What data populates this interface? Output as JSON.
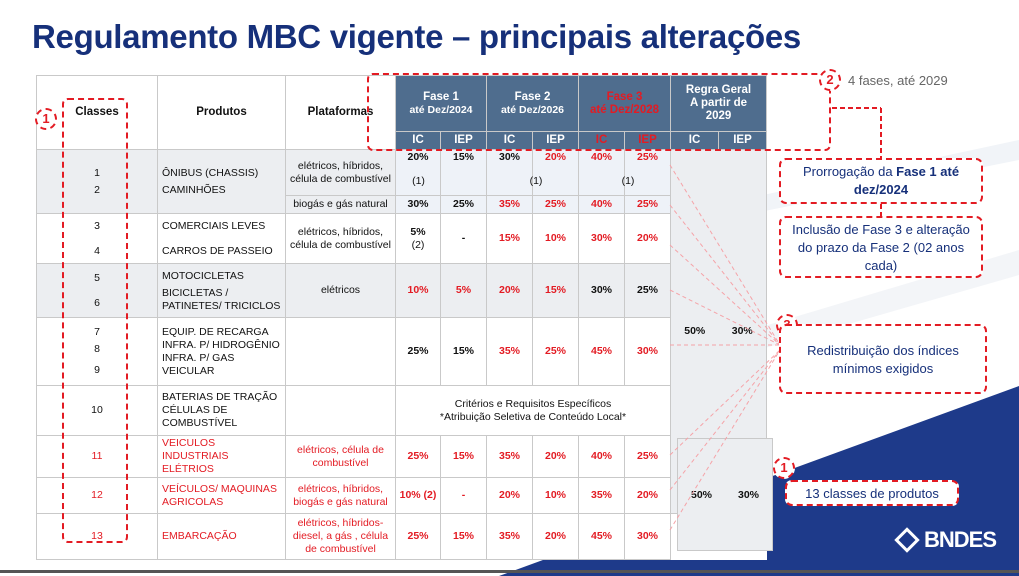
{
  "title": "Regulamento MBC vigente – principais alterações",
  "top_note": "4 fases, até 2029",
  "logo_text": "BNDES",
  "header": {
    "classes": "Classes",
    "produtos": "Produtos",
    "plataformas": "Plataformas",
    "fase1_line1": "Fase 1",
    "fase1_line2": "até Dez/2024",
    "fase2_line1": "Fase 2",
    "fase2_line2": "até Dez/2026",
    "fase3_line1": "Fase 3",
    "fase3_line2": "até Dez/2028",
    "regra_line1": "Regra Geral",
    "regra_line2": "A partir de",
    "regra_line3": "2029",
    "ic": "IC",
    "iep": "IEP"
  },
  "rows": {
    "r1": {
      "classes": [
        "1",
        "2"
      ],
      "produtos": [
        "ÔNIBUS (CHASSIS)",
        "CAMINHÕES"
      ],
      "plat_a": "elétricos, híbridos, célula de combustível",
      "a": [
        "20%",
        "15%",
        "30%",
        "20%",
        "40%",
        "25%"
      ],
      "note": "(1)",
      "plat_b": "biogás e gás natural",
      "b": [
        "30%",
        "25%",
        "35%",
        "25%",
        "40%",
        "25%"
      ]
    },
    "r2": {
      "classes": [
        "3",
        "4"
      ],
      "produtos": [
        "COMERCIAIS LEVES",
        "CARROS DE PASSEIO"
      ],
      "plat": "elétricos, híbridos, célula de combustível",
      "v": [
        "5%",
        "(2)",
        "-",
        "15%",
        "10%",
        "30%",
        "20%"
      ]
    },
    "r3": {
      "classes": [
        "5",
        "6"
      ],
      "produtos": [
        "MOTOCICLETAS",
        "BICICLETAS / PATINETES/ TRICICLOS"
      ],
      "plat": "elétricos",
      "v": [
        "10%",
        "5%",
        "20%",
        "15%",
        "30%",
        "25%"
      ]
    },
    "r4": {
      "classes": [
        "7",
        "8",
        "9"
      ],
      "produtos": [
        "EQUIP. DE RECARGA",
        "INFRA. P/ HIDROGÊNIO",
        "INFRA. P/ GAS VEICULAR"
      ],
      "v": [
        "25%",
        "15%",
        "35%",
        "25%",
        "45%",
        "30%"
      ]
    },
    "regra_top": [
      "50%",
      "30%"
    ],
    "r5": {
      "classe": "10",
      "produtos": [
        "BATERIAS DE TRAÇÃO",
        "CÉLULAS DE COMBUSTÍVEL"
      ],
      "criteria1": "Critérios e Requisitos Específicos",
      "criteria2": "*Atribuição Seletiva de Conteúdo Local*"
    },
    "r6": {
      "classe": "11",
      "produto": "VEICULOS INDUSTRIAIS ELÉTRIOS",
      "plat": "elétricos, célula de combustível",
      "v": [
        "25%",
        "15%",
        "35%",
        "20%",
        "40%",
        "25%"
      ]
    },
    "r7": {
      "classe": "12",
      "produto": "VEÍCULOS/ MAQUINAS AGRICOLAS",
      "plat": "elétricos, híbridos, biogás e gás natural",
      "v": [
        "10% (2)",
        "-",
        "20%",
        "10%",
        "35%",
        "20%"
      ]
    },
    "r8": {
      "classe": "13",
      "produto": "EMBARCAÇÃO",
      "plat": "elétricos, híbridos-diesel, a gás , célula de combustível",
      "v": [
        "25%",
        "15%",
        "35%",
        "20%",
        "45%",
        "30%"
      ]
    },
    "regra_bottom": [
      "50%",
      "30%"
    ]
  },
  "callouts": {
    "n1": "1",
    "n2": "2",
    "n3": "3",
    "prorrogacao_a": "Prorrogação da ",
    "prorrogacao_b": "Fase 1 até dez/2024",
    "inclusao": "Inclusão de Fase 3 e alteração do prazo da Fase 2 (02 anos cada)",
    "redistribuicao": "Redistribuição dos índices mínimos exigidos",
    "classes13": "13 classes de produtos"
  },
  "colors": {
    "accent_red": "#e31b23",
    "header_blue": "#4f6d8e",
    "title_blue": "#16307a",
    "brand_blue": "#1e3a8a"
  }
}
